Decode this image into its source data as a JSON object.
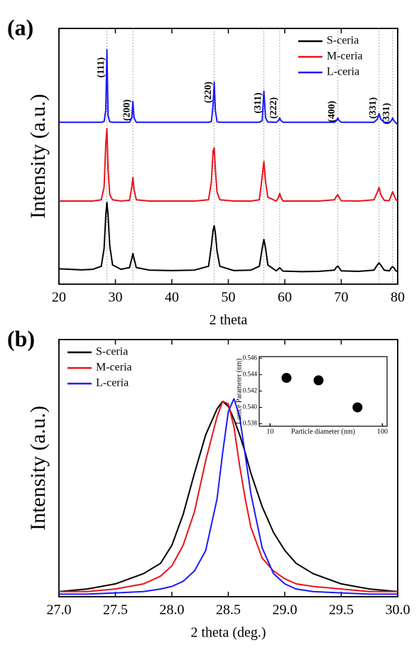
{
  "chart_data": [
    {
      "type": "line",
      "panel_label": "(a)",
      "xlabel": "2 theta",
      "ylabel": "Intensity (a.u.)",
      "xlim": [
        20,
        80
      ],
      "xticks": [
        20,
        30,
        40,
        50,
        60,
        70,
        80
      ],
      "ylim": [
        0,
        100
      ],
      "legend": "upper right",
      "x": [
        20,
        22,
        24,
        26,
        27.5,
        28.0,
        28.3,
        28.5,
        28.7,
        29.0,
        29.5,
        31,
        32.5,
        32.9,
        33.1,
        33.3,
        33.7,
        36,
        40,
        44,
        46.5,
        47.0,
        47.3,
        47.5,
        47.7,
        48.0,
        48.5,
        51,
        54,
        55.5,
        56.0,
        56.3,
        56.6,
        57.0,
        58.5,
        58.9,
        59.1,
        59.3,
        59.7,
        63,
        66,
        68.8,
        69.2,
        69.4,
        69.6,
        70.0,
        73,
        75.8,
        76.4,
        76.7,
        77.0,
        77.6,
        78.5,
        78.9,
        79.1,
        79.3,
        79.7,
        80
      ],
      "series": [
        {
          "name": "S-ceria",
          "color": "#000000",
          "values": [
            6,
            5.8,
            5.6,
            5.8,
            7,
            14,
            27,
            32,
            27,
            15,
            7.5,
            5.8,
            6.5,
            10,
            12,
            10,
            6.5,
            5.5,
            5.3,
            5.5,
            7,
            15,
            21,
            22.8,
            20,
            13,
            7,
            5.3,
            5.5,
            7,
            14,
            17.5,
            14,
            7.5,
            5.2,
            6,
            6.4,
            6,
            5.1,
            4.9,
            5,
            5.5,
            6.8,
            7,
            6.5,
            5.2,
            5,
            5.5,
            7.5,
            8.3,
            7.5,
            5.5,
            5.2,
            6.5,
            6.8,
            6.5,
            5.2,
            5
          ]
        },
        {
          "name": "M-ceria",
          "color": "#e8141b",
          "values": [
            32.5,
            32.5,
            32.5,
            32.5,
            33,
            38,
            55,
            60.8,
            45,
            35,
            33,
            32.5,
            32.8,
            38,
            41.7,
            37,
            33,
            32.5,
            32.5,
            32.5,
            33,
            40,
            52,
            53.3,
            45,
            36,
            33,
            32.5,
            32.5,
            33,
            42,
            48,
            40,
            34,
            32.5,
            34,
            35.5,
            34,
            32.5,
            32.5,
            32.5,
            33,
            34.5,
            35,
            34,
            32.6,
            32.5,
            33,
            36,
            37.8,
            35,
            32.8,
            32.6,
            35,
            36.1,
            35,
            33,
            32.5
          ]
        },
        {
          "name": "L-ceria",
          "color": "#1a1aff",
          "values": [
            63.3,
            63.3,
            63.3,
            63.3,
            63.3,
            63.6,
            68,
            91.7,
            66,
            63.5,
            63.3,
            63.3,
            63.3,
            65,
            71.4,
            65,
            63.3,
            63.3,
            63.3,
            63.3,
            63.3,
            63.6,
            70,
            79,
            68,
            63.5,
            63.3,
            63.3,
            63.3,
            63.3,
            64,
            75.5,
            65,
            63.4,
            63.3,
            64,
            65,
            64,
            63.3,
            63.3,
            63.3,
            63.3,
            64,
            65,
            64,
            63.3,
            63.3,
            63.3,
            64.5,
            66.7,
            64.5,
            63.3,
            63.3,
            64,
            65,
            64,
            63,
            62.5
          ]
        }
      ],
      "annotations": [
        {
          "text": "(111)",
          "x": 28.5
        },
        {
          "text": "(200)",
          "x": 33.1
        },
        {
          "text": "(220)",
          "x": 47.5
        },
        {
          "text": "(311)",
          "x": 56.3
        },
        {
          "text": "(222)",
          "x": 59.1
        },
        {
          "text": "(400)",
          "x": 69.4
        },
        {
          "text": "(331)",
          "x": 76.7
        },
        {
          "text": "(331)",
          "x": 79.1
        }
      ]
    },
    {
      "type": "line",
      "panel_label": "(b)",
      "xlabel": "2 theta (deg.)",
      "ylabel": "Intensity (a.u.)",
      "xlim": [
        27,
        30
      ],
      "xticks": [
        {
          "value": 27,
          "label": "27.0"
        },
        27.5,
        {
          "value": 28,
          "label": "28.0"
        },
        28.5,
        {
          "value": 29,
          "label": "29.0"
        },
        29.5,
        {
          "value": 30,
          "label": "30.0"
        }
      ],
      "ylim": [
        0,
        100
      ],
      "legend": "upper left",
      "x": [
        27.0,
        27.25,
        27.5,
        27.75,
        27.9,
        28.0,
        28.1,
        28.2,
        28.3,
        28.4,
        28.45,
        28.5,
        28.55,
        28.6,
        28.65,
        28.7,
        28.8,
        28.9,
        29.0,
        29.1,
        29.25,
        29.5,
        29.75,
        30.0
      ],
      "series": [
        {
          "name": "S-ceria",
          "color": "#000000",
          "values": [
            2,
            3,
            5,
            9,
            13,
            20,
            32,
            48,
            63,
            73,
            76,
            74,
            69,
            63,
            56,
            48,
            35,
            25,
            18,
            13,
            9,
            5,
            3,
            2
          ]
        },
        {
          "name": "M-ceria",
          "color": "#e8141b",
          "values": [
            2,
            2,
            3,
            5,
            8,
            12,
            20,
            33,
            53,
            70,
            76,
            75,
            66,
            51,
            38,
            27,
            15,
            10,
            7,
            5,
            4,
            3,
            2,
            2
          ]
        },
        {
          "name": "L-ceria",
          "color": "#1a1aff",
          "values": [
            1,
            1,
            1.5,
            2,
            3,
            4,
            6,
            10,
            18,
            38,
            56,
            72,
            77,
            70,
            55,
            40,
            19,
            9,
            5,
            3,
            2,
            1.5,
            1,
            1
          ]
        }
      ]
    },
    {
      "type": "scatter",
      "xlabel": "Particle diameter (nm)",
      "ylabel": "Lattice Parameter (nm)",
      "xlog": true,
      "xlim": [
        8,
        110
      ],
      "xticks": [
        10,
        100
      ],
      "ylim": [
        0.5377,
        0.5462
      ],
      "yticks": [
        0.538,
        {
          "value": 0.54,
          "label": "0.540"
        },
        0.542,
        0.544,
        0.546
      ],
      "x": [
        14,
        27,
        60
      ],
      "values": [
        0.5436,
        0.5433,
        0.54
      ],
      "color": "#000000"
    }
  ]
}
